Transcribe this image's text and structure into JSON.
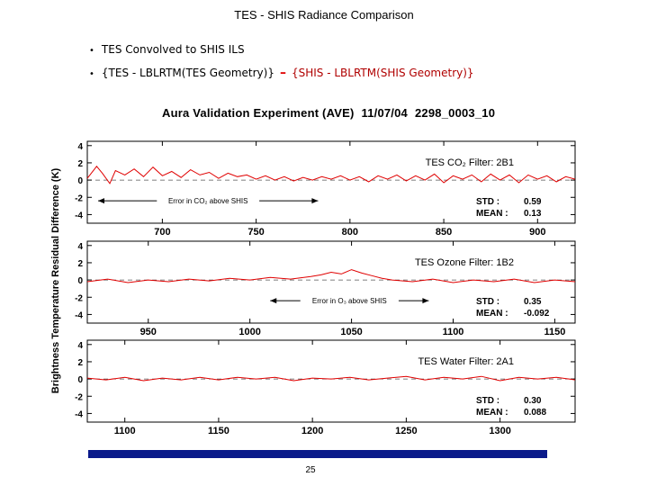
{
  "slide": {
    "title": "TES - SHIS Radiance Comparison",
    "bullet1": "TES Convolved to SHIS ILS",
    "bullet2_left": "{TES - LBLRTM(TES Geometry)}",
    "bullet2_minus": "–",
    "bullet2_right": "{SHIS - LBLRTM(SHIS Geometry)}",
    "page_number": "25"
  },
  "figure": {
    "title_parts": [
      "Aura Validation Experiment (AVE)",
      "11/07/04",
      "2298_0003_10"
    ],
    "ylabel": "Brightness Temperature Residual Difference (K)"
  },
  "colors": {
    "line": "#e00000",
    "frame": "#000000",
    "footer_bar": "#0a1a8a"
  },
  "chart_data": [
    {
      "type": "line",
      "panel_label": "TES CO₂ Filter: 2B1",
      "xticks": [
        700,
        750,
        800,
        850,
        900
      ],
      "xlim": [
        660,
        920
      ],
      "ylim": [
        -5,
        4.5
      ],
      "yticks": [
        4,
        2,
        0,
        -2,
        -4
      ],
      "stats": {
        "std_label": "STD :",
        "std": "0.59",
        "mean_label": "MEAN :",
        "mean": "0.13"
      },
      "annotation": "Error in CO₂ above SHIS",
      "annotation_range": [
        640,
        783
      ],
      "series": [
        {
          "points": [
            [
              660,
              0.2
            ],
            [
              665,
              1.6
            ],
            [
              668,
              0.8
            ],
            [
              672,
              -0.4
            ],
            [
              675,
              1.1
            ],
            [
              680,
              0.6
            ],
            [
              685,
              1.3
            ],
            [
              690,
              0.4
            ],
            [
              695,
              1.5
            ],
            [
              700,
              0.5
            ],
            [
              705,
              1.0
            ],
            [
              710,
              0.3
            ],
            [
              715,
              1.2
            ],
            [
              720,
              0.6
            ],
            [
              725,
              0.9
            ],
            [
              730,
              0.2
            ],
            [
              735,
              0.8
            ],
            [
              740,
              0.4
            ],
            [
              745,
              0.6
            ],
            [
              750,
              0.1
            ],
            [
              755,
              0.5
            ],
            [
              760,
              0.0
            ],
            [
              765,
              0.4
            ],
            [
              770,
              -0.1
            ],
            [
              775,
              0.3
            ],
            [
              780,
              0.0
            ],
            [
              785,
              0.4
            ],
            [
              790,
              0.1
            ],
            [
              795,
              0.5
            ],
            [
              800,
              0.0
            ],
            [
              805,
              0.4
            ],
            [
              810,
              -0.2
            ],
            [
              815,
              0.5
            ],
            [
              820,
              0.1
            ],
            [
              825,
              0.6
            ],
            [
              830,
              -0.1
            ],
            [
              835,
              0.5
            ],
            [
              840,
              0.0
            ],
            [
              845,
              0.7
            ],
            [
              850,
              -0.3
            ],
            [
              855,
              0.5
            ],
            [
              860,
              0.1
            ],
            [
              865,
              0.6
            ],
            [
              870,
              -0.2
            ],
            [
              875,
              0.7
            ],
            [
              880,
              0.0
            ],
            [
              885,
              0.6
            ],
            [
              890,
              -0.3
            ],
            [
              895,
              0.6
            ],
            [
              900,
              0.1
            ],
            [
              905,
              0.5
            ],
            [
              910,
              -0.2
            ],
            [
              915,
              0.4
            ],
            [
              920,
              0.1
            ]
          ]
        }
      ]
    },
    {
      "type": "line",
      "panel_label": "TES Ozone Filter: 1B2",
      "xticks": [
        950,
        1000,
        1050,
        1100,
        1150
      ],
      "xlim": [
        920,
        1160
      ],
      "ylim": [
        -5,
        4.5
      ],
      "yticks": [
        4,
        2,
        0,
        -2,
        -4
      ],
      "stats": {
        "std_label": "STD :",
        "std": "0.35",
        "mean_label": "MEAN :",
        "mean": "-0.092"
      },
      "annotation": "Error in O₃ above SHIS",
      "annotation_range": [
        1010,
        1088
      ],
      "series": [
        {
          "points": [
            [
              920,
              -0.2
            ],
            [
              930,
              0.1
            ],
            [
              940,
              -0.3
            ],
            [
              950,
              0.0
            ],
            [
              960,
              -0.2
            ],
            [
              970,
              0.1
            ],
            [
              980,
              -0.1
            ],
            [
              990,
              0.2
            ],
            [
              1000,
              0.0
            ],
            [
              1010,
              0.3
            ],
            [
              1020,
              0.1
            ],
            [
              1030,
              0.4
            ],
            [
              1035,
              0.6
            ],
            [
              1040,
              0.9
            ],
            [
              1045,
              0.7
            ],
            [
              1050,
              1.2
            ],
            [
              1055,
              0.8
            ],
            [
              1060,
              0.5
            ],
            [
              1065,
              0.2
            ],
            [
              1070,
              0.0
            ],
            [
              1080,
              -0.2
            ],
            [
              1090,
              0.1
            ],
            [
              1100,
              -0.3
            ],
            [
              1110,
              0.0
            ],
            [
              1120,
              -0.2
            ],
            [
              1130,
              0.1
            ],
            [
              1140,
              -0.3
            ],
            [
              1150,
              0.0
            ],
            [
              1160,
              -0.2
            ]
          ]
        }
      ]
    },
    {
      "type": "line",
      "panel_label": "TES Water Filter: 2A1",
      "xticks": [
        1100,
        1150,
        1200,
        1250,
        1300
      ],
      "xlim": [
        1080,
        1340
      ],
      "ylim": [
        -5,
        4.5
      ],
      "yticks": [
        4,
        2,
        0,
        -2,
        -4
      ],
      "stats": {
        "std_label": "STD :",
        "std": "0.30",
        "mean_label": "MEAN :",
        "mean": "0.088"
      },
      "annotation": "",
      "series": [
        {
          "points": [
            [
              1080,
              0.1
            ],
            [
              1090,
              -0.1
            ],
            [
              1100,
              0.2
            ],
            [
              1110,
              -0.2
            ],
            [
              1120,
              0.1
            ],
            [
              1130,
              -0.1
            ],
            [
              1140,
              0.2
            ],
            [
              1150,
              -0.1
            ],
            [
              1160,
              0.2
            ],
            [
              1170,
              0.0
            ],
            [
              1180,
              0.2
            ],
            [
              1190,
              -0.2
            ],
            [
              1200,
              0.1
            ],
            [
              1210,
              0.0
            ],
            [
              1220,
              0.2
            ],
            [
              1230,
              -0.1
            ],
            [
              1240,
              0.1
            ],
            [
              1250,
              0.3
            ],
            [
              1260,
              -0.1
            ],
            [
              1270,
              0.2
            ],
            [
              1280,
              0.0
            ],
            [
              1290,
              0.3
            ],
            [
              1300,
              -0.2
            ],
            [
              1310,
              0.2
            ],
            [
              1320,
              0.0
            ],
            [
              1330,
              0.2
            ],
            [
              1340,
              -0.1
            ]
          ]
        }
      ]
    }
  ]
}
